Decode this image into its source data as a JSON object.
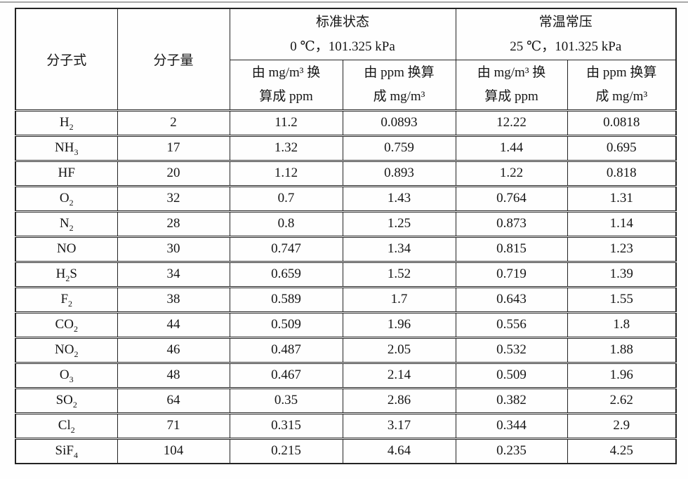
{
  "page": {
    "kind": "scanned-table-document"
  },
  "table": {
    "headers": {
      "formula": "分子式",
      "weight": "分子量",
      "group1": {
        "title": "标准状态",
        "condition": "0 ℃，101.325 kPa"
      },
      "group2": {
        "title": "常温常压",
        "condition": "25 ℃，101.325 kPa"
      },
      "sub_mg_to_ppm": {
        "line1": "由 mg/m³ 换",
        "line2": "算成 ppm"
      },
      "sub_ppm_to_mg": {
        "line1": "由 ppm 换算",
        "line2": "成 mg/m³"
      }
    },
    "rows": [
      {
        "formula": "H2",
        "weight": "2",
        "values": [
          "11.2",
          "0.0893",
          "12.22",
          "0.0818"
        ]
      },
      {
        "formula": "NH3",
        "weight": "17",
        "values": [
          "1.32",
          "0.759",
          "1.44",
          "0.695"
        ]
      },
      {
        "formula": "HF",
        "weight": "20",
        "values": [
          "1.12",
          "0.893",
          "1.22",
          "0.818"
        ]
      },
      {
        "formula": "O2",
        "weight": "32",
        "values": [
          "0.7",
          "1.43",
          "0.764",
          "1.31"
        ]
      },
      {
        "formula": "N2",
        "weight": "28",
        "values": [
          "0.8",
          "1.25",
          "0.873",
          "1.14"
        ]
      },
      {
        "formula": "NO",
        "weight": "30",
        "values": [
          "0.747",
          "1.34",
          "0.815",
          "1.23"
        ]
      },
      {
        "formula": "H2S",
        "weight": "34",
        "values": [
          "0.659",
          "1.52",
          "0.719",
          "1.39"
        ]
      },
      {
        "formula": "F2",
        "weight": "38",
        "values": [
          "0.589",
          "1.7",
          "0.643",
          "1.55"
        ]
      },
      {
        "formula": "CO2",
        "weight": "44",
        "values": [
          "0.509",
          "1.96",
          "0.556",
          "1.8"
        ]
      },
      {
        "formula": "NO2",
        "weight": "46",
        "values": [
          "0.487",
          "2.05",
          "0.532",
          "1.88"
        ]
      },
      {
        "formula": "O3",
        "weight": "48",
        "values": [
          "0.467",
          "2.14",
          "0.509",
          "1.96"
        ]
      },
      {
        "formula": "SO2",
        "weight": "64",
        "values": [
          "0.35",
          "2.86",
          "0.382",
          "2.62"
        ]
      },
      {
        "formula": "Cl2",
        "weight": "71",
        "values": [
          "0.315",
          "3.17",
          "0.344",
          "2.9"
        ]
      },
      {
        "formula": "SiF4",
        "weight": "104",
        "values": [
          "0.215",
          "4.64",
          "0.235",
          "4.25"
        ]
      }
    ]
  },
  "colors": {
    "border": "#232323",
    "text": "#161616",
    "background": "#fefefe",
    "page_edge_line": "#a9a9a9"
  }
}
